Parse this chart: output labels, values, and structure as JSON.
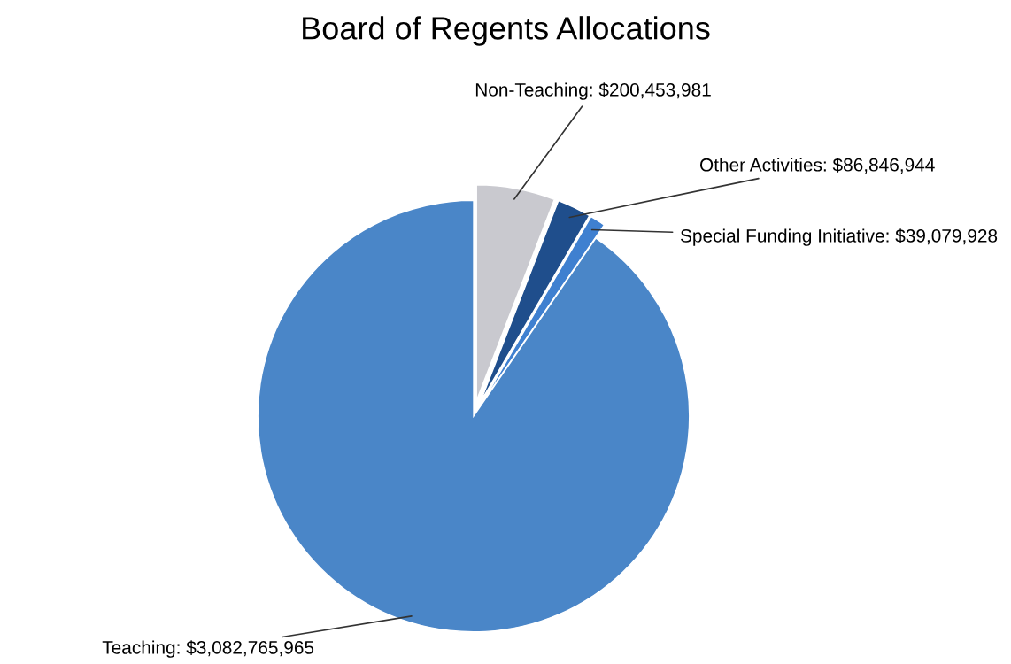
{
  "chart_data": {
    "type": "pie",
    "title": "Board of Regents Allocations",
    "categories": [
      "Non-Teaching",
      "Other Activities",
      "Special Funding Initiative",
      "Teaching"
    ],
    "values": [
      200453981,
      86846944,
      39079928,
      3082765965
    ],
    "value_labels": [
      "$200,453,981",
      "$86,846,944",
      "$39,079,928",
      "$3,082,765,965"
    ],
    "colors": [
      "#c9c9cf",
      "#1f4e8c",
      "#3f80d0",
      "#4a86c8"
    ],
    "legend": false
  }
}
